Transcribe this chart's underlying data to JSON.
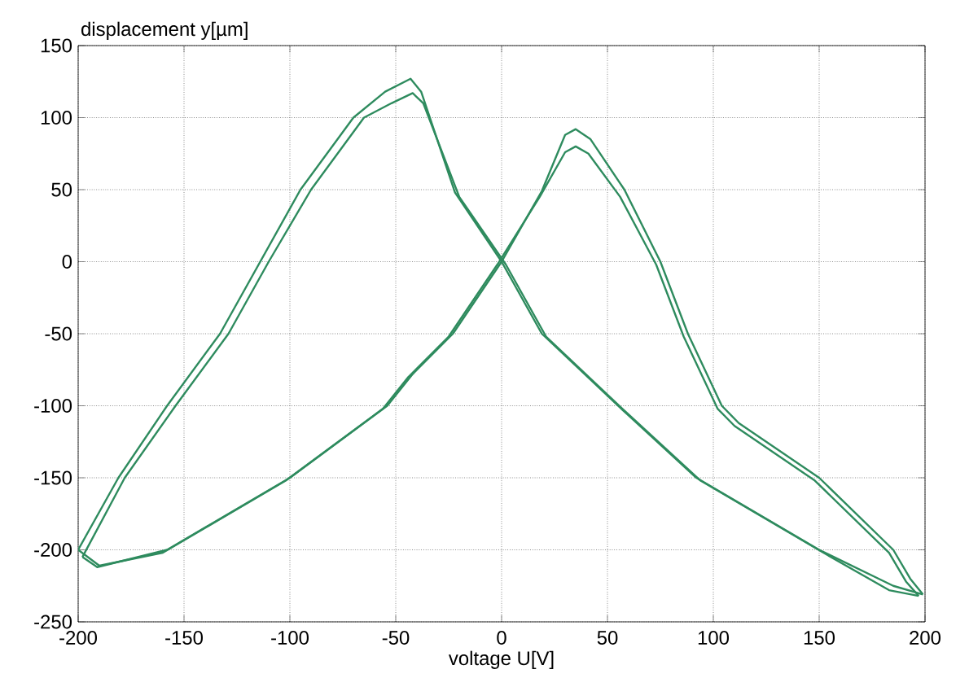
{
  "chart_data": {
    "type": "line",
    "xlabel": "voltage U[V]",
    "ylabel": "displacement y[µm]",
    "xlim": [
      -200,
      200
    ],
    "ylim": [
      -250,
      150
    ],
    "xticks": [
      -200,
      -150,
      -100,
      -50,
      0,
      50,
      100,
      150,
      200
    ],
    "yticks": [
      -250,
      -200,
      -150,
      -100,
      -50,
      0,
      50,
      100,
      150
    ],
    "grid": true,
    "line_style": "solid",
    "series": [
      {
        "color": "#2e8b5e",
        "x": [
          -200,
          -181,
          -158,
          -133,
          -114,
          -95,
          -70,
          -55,
          -43,
          -38,
          -22,
          0,
          19,
          55,
          92,
          150,
          185,
          199
        ],
        "values": [
          -200,
          -150,
          -100,
          -50,
          0,
          50,
          100,
          118,
          127,
          118,
          48,
          0,
          -50,
          -100,
          -150,
          -200,
          -225,
          -231
        ]
      },
      {
        "color": "#2e8b5e",
        "x": [
          199,
          193,
          185,
          150,
          112,
          104,
          88,
          75,
          58,
          42,
          35,
          30,
          19,
          0,
          -23,
          -42,
          -54,
          -100,
          -158,
          -191,
          -198
        ],
        "values": [
          -231,
          -220,
          -200,
          -150,
          -112,
          -100,
          -50,
          0,
          50,
          85,
          92,
          88,
          49,
          0,
          -50,
          -78,
          -100,
          -150,
          -200,
          -212,
          -205
        ]
      },
      {
        "color": "#2e8b5e",
        "x": [
          -198,
          -178,
          -154,
          -129,
          -110,
          -90,
          -65,
          -52,
          -42,
          -37,
          -20,
          2,
          21,
          57,
          94,
          152,
          183,
          197
        ],
        "values": [
          -205,
          -150,
          -100,
          -50,
          0,
          50,
          100,
          110,
          117,
          110,
          45,
          -2,
          -52,
          -102,
          -152,
          -202,
          -228,
          -232
        ]
      },
      {
        "color": "#2e8b5e",
        "x": [
          197,
          191,
          183,
          148,
          110,
          102,
          86,
          73,
          56,
          41,
          35,
          30,
          18,
          -2,
          -25,
          -44,
          -56,
          -102,
          -160,
          -190,
          -200
        ],
        "values": [
          -232,
          -222,
          -202,
          -152,
          -114,
          -102,
          -52,
          -2,
          45,
          75,
          80,
          76,
          45,
          -2,
          -52,
          -80,
          -102,
          -152,
          -202,
          -211,
          -200
        ]
      }
    ]
  }
}
